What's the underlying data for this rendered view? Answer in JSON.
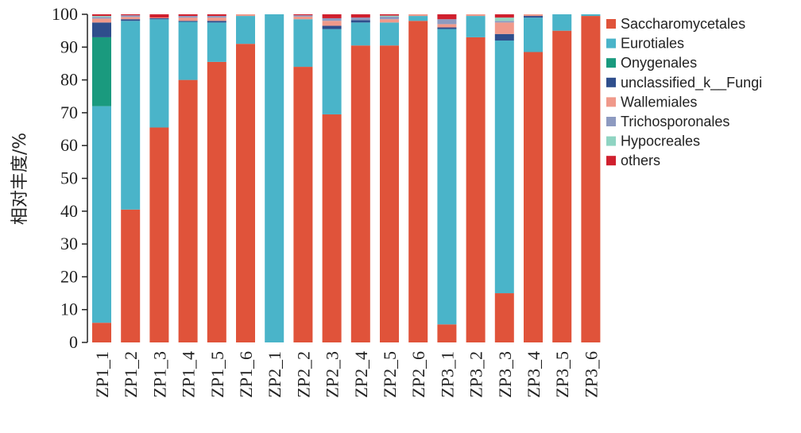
{
  "chart_data": {
    "type": "bar",
    "stacked": true,
    "title": "",
    "xlabel": "",
    "ylabel": "相对丰度/%",
    "ylim": [
      0,
      100
    ],
    "yticks": [
      0,
      10,
      20,
      30,
      40,
      50,
      60,
      70,
      80,
      90,
      100
    ],
    "grid": false,
    "legend_position": "right",
    "categories": [
      "ZP1_1",
      "ZP1_2",
      "ZP1_3",
      "ZP1_4",
      "ZP1_5",
      "ZP1_6",
      "ZP2_1",
      "ZP2_2",
      "ZP2_3",
      "ZP2_4",
      "ZP2_5",
      "ZP2_6",
      "ZP3_1",
      "ZP3_2",
      "ZP3_3",
      "ZP3_4",
      "ZP3_5",
      "ZP3_6"
    ],
    "series": [
      {
        "name": "Saccharomycetales",
        "color": "#e0533a",
        "values": [
          6,
          40.5,
          65.5,
          80,
          85.5,
          91,
          0,
          84,
          69.5,
          90.5,
          90.5,
          98,
          5.5,
          93,
          15,
          88.5,
          95,
          99.5
        ]
      },
      {
        "name": "Eurotiales",
        "color": "#4ab4c9",
        "values": [
          66,
          57.5,
          33,
          17.7,
          12,
          8.5,
          100,
          14.5,
          26,
          7,
          7,
          1.5,
          90,
          6.5,
          77,
          10.5,
          5,
          0.5
        ]
      },
      {
        "name": "Onygenales",
        "color": "#1a9a7e",
        "values": [
          21,
          0,
          0,
          0,
          0,
          0,
          0,
          0,
          0,
          0,
          0,
          0,
          0,
          0,
          0,
          0,
          0,
          0
        ]
      },
      {
        "name": "unclassified_k__Fungi",
        "color": "#2f4e8c",
        "values": [
          4.5,
          0.5,
          0.3,
          0.3,
          0.5,
          0,
          0,
          0,
          1,
          0.7,
          0,
          0,
          0.5,
          0,
          2,
          0.5,
          0,
          0
        ]
      },
      {
        "name": "Wallemiales",
        "color": "#f0998a",
        "values": [
          1.2,
          0.7,
          0.2,
          1,
          1,
          0.5,
          0,
          0.8,
          1.5,
          0,
          1,
          0.5,
          1,
          0.5,
          3.5,
          0.5,
          0,
          0
        ]
      },
      {
        "name": "Trichosporonales",
        "color": "#8d9ac0",
        "values": [
          0.5,
          0.5,
          0,
          0.5,
          0.5,
          0,
          0,
          0.4,
          0.8,
          0.8,
          0.8,
          0,
          1.5,
          0,
          0.5,
          0,
          0,
          0
        ]
      },
      {
        "name": "Hypocreales",
        "color": "#8fd4c2",
        "values": [
          0.3,
          0,
          0,
          0,
          0,
          0,
          0,
          0,
          0,
          0,
          0.3,
          0,
          0,
          0,
          1,
          0,
          0,
          0
        ]
      },
      {
        "name": "others",
        "color": "#d0202e",
        "values": [
          0.5,
          0.3,
          1,
          0.5,
          0.5,
          0,
          0,
          0.3,
          1.2,
          1,
          0.4,
          0,
          1.5,
          0,
          1,
          0,
          0,
          0
        ]
      }
    ]
  }
}
